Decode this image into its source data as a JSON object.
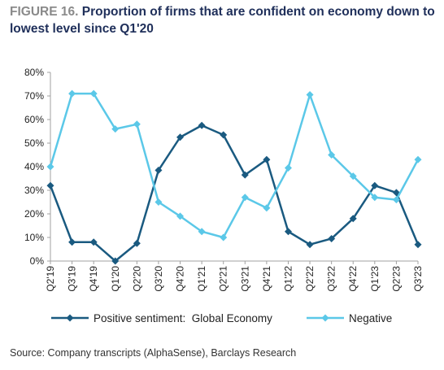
{
  "figure": {
    "label": "FIGURE 16.",
    "title": "Proportion of firms that are confident on economy down to lowest level since Q1'20",
    "source": "Source: Company transcripts (AlphaSense), Barclays Research"
  },
  "chart_data": {
    "type": "line",
    "categories": [
      "Q2'19",
      "Q3'19",
      "Q4'19",
      "Q1'20",
      "Q2'20",
      "Q3'20",
      "Q4'20",
      "Q1'21",
      "Q2'21",
      "Q3'21",
      "Q4'21",
      "Q1'22",
      "Q2'22",
      "Q3'22",
      "Q4'22",
      "Q1'23",
      "Q2'23",
      "Q3'23"
    ],
    "series": [
      {
        "name": "Positive sentiment:  Global Economy",
        "color": "#1a5a80",
        "marker": "diamond",
        "values": [
          32,
          8,
          8,
          0,
          7.5,
          38.5,
          52.5,
          57.5,
          53.5,
          36.5,
          43,
          12.5,
          7,
          9.5,
          18,
          32,
          29,
          7
        ]
      },
      {
        "name": "Negative",
        "color": "#5bc8e8",
        "marker": "diamond",
        "values": [
          40,
          71,
          71,
          56,
          58,
          25,
          19,
          12.5,
          10,
          27,
          22.5,
          39.5,
          70.5,
          45,
          36,
          27,
          26,
          43
        ]
      }
    ],
    "ylim": [
      0,
      80
    ],
    "yticks": [
      0,
      10,
      20,
      30,
      40,
      50,
      60,
      70,
      80
    ],
    "ytick_format": "percent",
    "grid": false,
    "legend_position": "bottom"
  }
}
